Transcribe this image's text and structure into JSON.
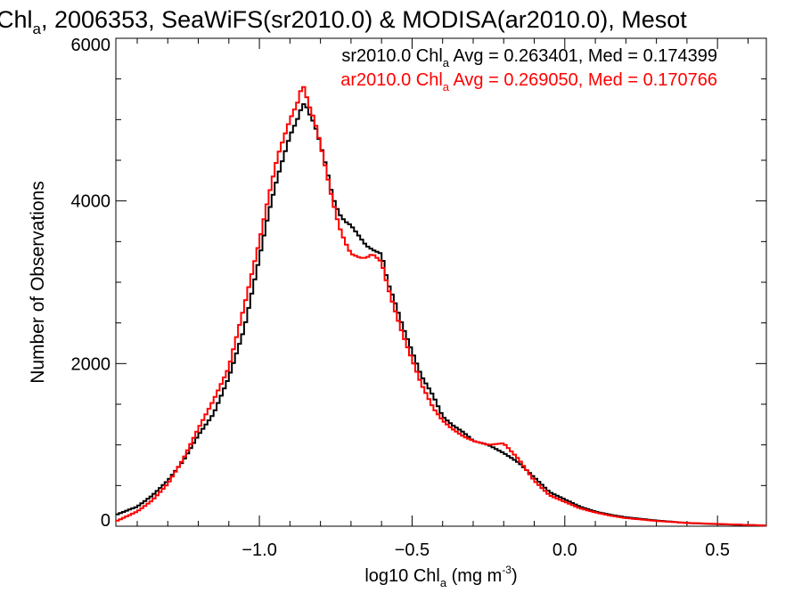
{
  "chart_data": {
    "type": "line",
    "title": {
      "a": "Chl",
      "sub": "a",
      "b": ", 2006353, SeaWiFS(sr2010.0) & MODISA(ar2010.0), Mesot"
    },
    "xlabel": {
      "a": "log10 Chl",
      "sub": "a",
      "b": " (mg m",
      "sup": "-3",
      "c": ")"
    },
    "ylabel": "Number of Observations",
    "xlim": [
      -1.47,
      0.66
    ],
    "ylim": [
      0,
      6000
    ],
    "xticks": [
      -1.0,
      -0.5,
      0.0,
      0.5
    ],
    "xtick_labels": [
      "−1.0",
      "−0.5",
      "0.0",
      "0.5"
    ],
    "yticks": [
      0,
      2000,
      4000,
      6000
    ],
    "ytick_labels": [
      "0",
      "2000",
      "4000",
      "6000"
    ],
    "grid": false,
    "legend_placement": "top-right",
    "series": [
      {
        "name": "sr2010.0",
        "color": "#000000",
        "label": {
          "a": "sr2010.0 Chl",
          "sub": "a",
          "b": " Avg = 0.263401, Med = 0.174399"
        },
        "x": [
          -1.47,
          -1.4,
          -1.35,
          -1.3,
          -1.25,
          -1.2,
          -1.15,
          -1.1,
          -1.05,
          -1.0,
          -0.97,
          -0.94,
          -0.9,
          -0.87,
          -0.86,
          -0.85,
          -0.84,
          -0.82,
          -0.8,
          -0.78,
          -0.76,
          -0.74,
          -0.72,
          -0.7,
          -0.67,
          -0.65,
          -0.63,
          -0.6,
          -0.58,
          -0.56,
          -0.53,
          -0.5,
          -0.47,
          -0.43,
          -0.4,
          -0.37,
          -0.33,
          -0.3,
          -0.25,
          -0.2,
          -0.15,
          -0.1,
          -0.05,
          0.0,
          0.05,
          0.1,
          0.15,
          0.2,
          0.3,
          0.4,
          0.5,
          0.6,
          0.66
        ],
        "y": [
          140,
          240,
          380,
          560,
          800,
          1120,
          1380,
          1830,
          2420,
          3300,
          3850,
          4300,
          4800,
          5050,
          5180,
          5200,
          5100,
          4950,
          4700,
          4400,
          4050,
          3850,
          3750,
          3700,
          3550,
          3450,
          3400,
          3350,
          3000,
          2800,
          2450,
          2150,
          1850,
          1600,
          1350,
          1250,
          1150,
          1050,
          1000,
          900,
          780,
          600,
          420,
          330,
          240,
          180,
          140,
          110,
          70,
          40,
          25,
          15,
          8
        ]
      },
      {
        "name": "ar2010.0",
        "color": "#ff0000",
        "label": {
          "a": "ar2010.0 Chl",
          "sub": "a",
          "b": " Avg = 0.269050, Med = 0.170766"
        },
        "x": [
          -1.47,
          -1.4,
          -1.35,
          -1.3,
          -1.25,
          -1.2,
          -1.15,
          -1.1,
          -1.05,
          -1.0,
          -0.97,
          -0.94,
          -0.9,
          -0.87,
          -0.86,
          -0.85,
          -0.84,
          -0.82,
          -0.8,
          -0.78,
          -0.76,
          -0.74,
          -0.72,
          -0.7,
          -0.67,
          -0.65,
          -0.63,
          -0.6,
          -0.58,
          -0.56,
          -0.53,
          -0.5,
          -0.47,
          -0.43,
          -0.4,
          -0.37,
          -0.33,
          -0.3,
          -0.25,
          -0.2,
          -0.15,
          -0.1,
          -0.05,
          0.0,
          0.05,
          0.1,
          0.15,
          0.2,
          0.3,
          0.4,
          0.5,
          0.6,
          0.66
        ],
        "y": [
          60,
          180,
          320,
          520,
          820,
          1200,
          1550,
          1950,
          2700,
          3500,
          4050,
          4550,
          5000,
          5250,
          5450,
          5350,
          5200,
          5000,
          4700,
          4350,
          4000,
          3700,
          3500,
          3350,
          3300,
          3300,
          3350,
          3250,
          2950,
          2700,
          2350,
          2050,
          1750,
          1450,
          1300,
          1200,
          1100,
          1050,
          1000,
          1020,
          820,
          560,
          380,
          300,
          220,
          170,
          130,
          100,
          65,
          40,
          28,
          15,
          8
        ]
      }
    ]
  }
}
